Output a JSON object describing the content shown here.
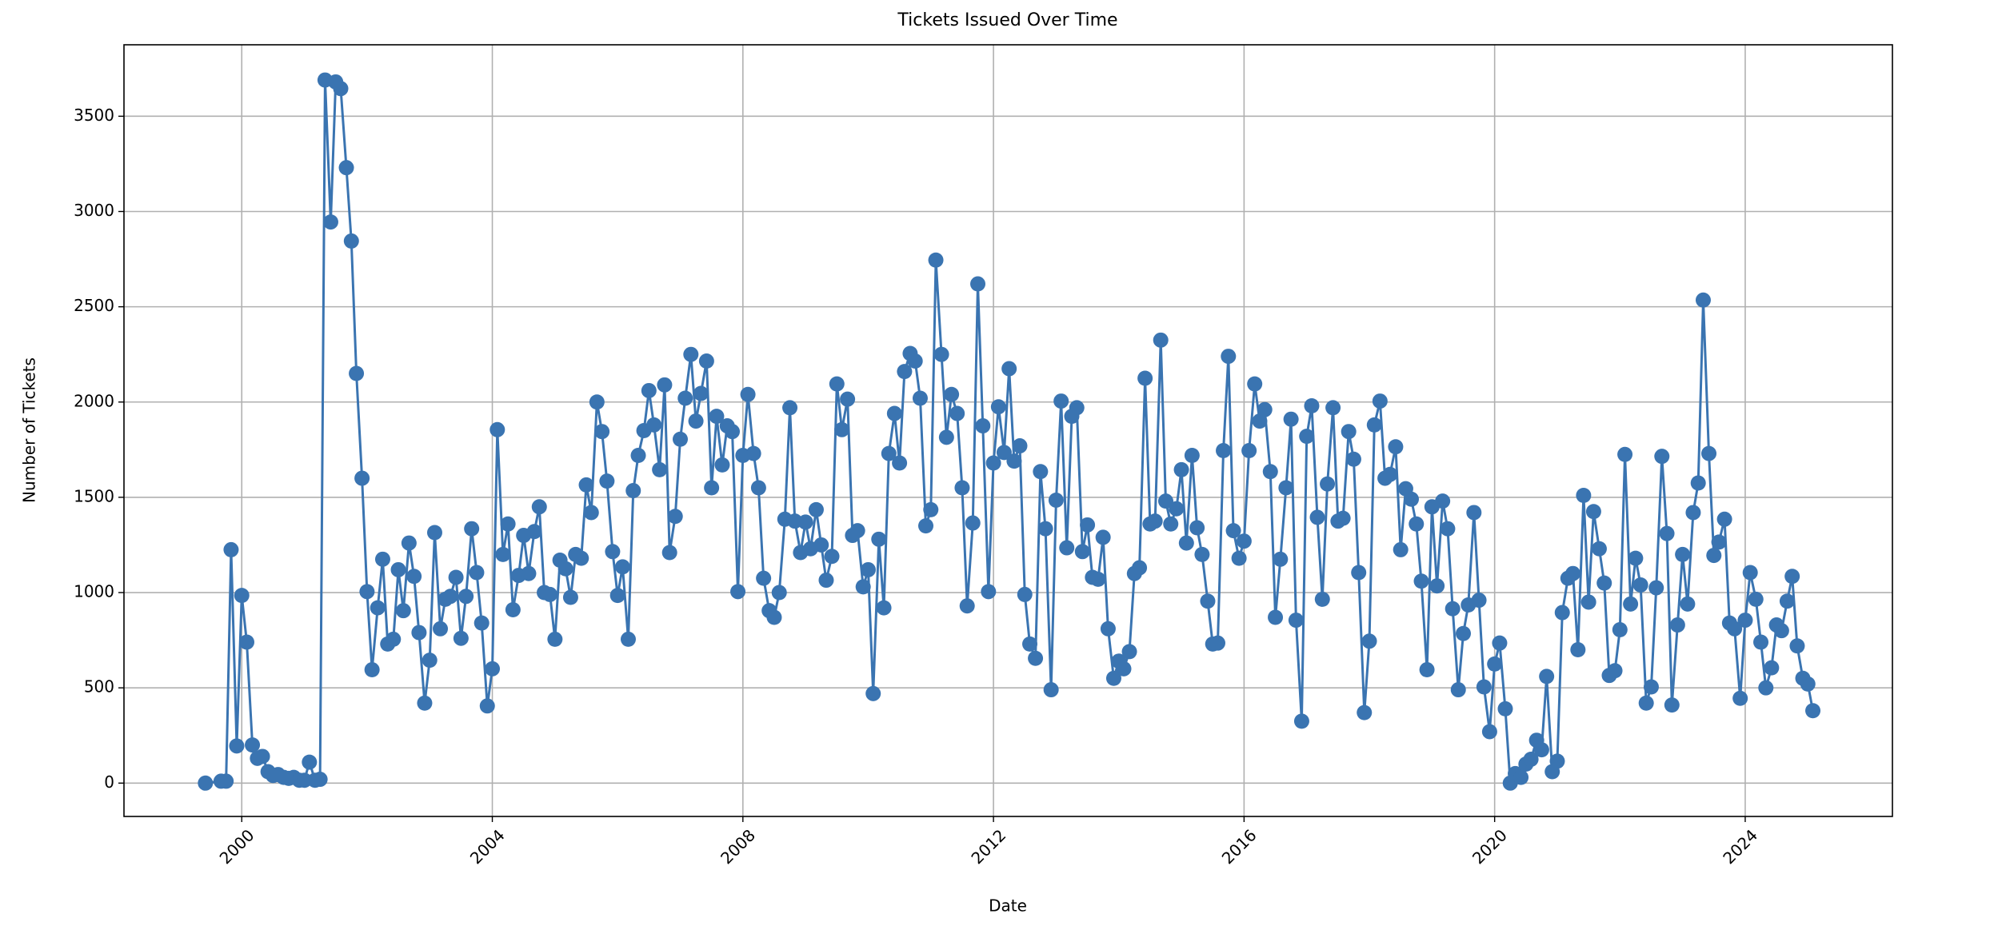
{
  "chart_data": {
    "type": "line",
    "title": "Tickets Issued Over Time",
    "xlabel": "Date",
    "ylabel": "Number of Tickets",
    "color": "#3a74b1",
    "grid": true,
    "marker": "o",
    "xlim": [
      1998.12,
      2026.35
    ],
    "xticks": [
      2000,
      2004,
      2008,
      2012,
      2016,
      2020,
      2024
    ],
    "ylim": [
      -175,
      3875
    ],
    "yticks": [
      0,
      500,
      1000,
      1500,
      2000,
      2500,
      3000,
      3500
    ],
    "x": [
      1999.42,
      1999.67,
      1999.75,
      1999.83,
      1999.92,
      2000,
      2000.08,
      2000.17,
      2000.25,
      2000.33,
      2000.42,
      2000.5,
      2000.58,
      2000.67,
      2000.75,
      2000.83,
      2000.92,
      2001,
      2001.08,
      2001.17,
      2001.25,
      2001.33,
      2001.42,
      2001.5,
      2001.58,
      2001.67,
      2001.75,
      2001.83,
      2001.92,
      2002,
      2002.08,
      2002.17,
      2002.25,
      2002.33,
      2002.42,
      2002.5,
      2002.58,
      2002.67,
      2002.75,
      2002.83,
      2002.92,
      2003,
      2003.08,
      2003.17,
      2003.25,
      2003.33,
      2003.42,
      2003.5,
      2003.58,
      2003.67,
      2003.75,
      2003.83,
      2003.92,
      2004,
      2004.08,
      2004.17,
      2004.25,
      2004.33,
      2004.42,
      2004.5,
      2004.58,
      2004.67,
      2004.75,
      2004.83,
      2004.92,
      2005,
      2005.08,
      2005.17,
      2005.25,
      2005.33,
      2005.42,
      2005.5,
      2005.58,
      2005.67,
      2005.75,
      2005.83,
      2005.92,
      2006,
      2006.08,
      2006.17,
      2006.25,
      2006.33,
      2006.42,
      2006.5,
      2006.58,
      2006.67,
      2006.75,
      2006.83,
      2006.92,
      2007,
      2007.08,
      2007.17,
      2007.25,
      2007.33,
      2007.42,
      2007.5,
      2007.58,
      2007.67,
      2007.75,
      2007.83,
      2007.92,
      2008,
      2008.08,
      2008.17,
      2008.25,
      2008.33,
      2008.42,
      2008.5,
      2008.58,
      2008.67,
      2008.75,
      2008.83,
      2008.92,
      2009,
      2009.08,
      2009.17,
      2009.25,
      2009.33,
      2009.42,
      2009.5,
      2009.58,
      2009.67,
      2009.75,
      2009.83,
      2009.92,
      2010,
      2010.08,
      2010.17,
      2010.25,
      2010.33,
      2010.42,
      2010.5,
      2010.58,
      2010.67,
      2010.75,
      2010.83,
      2010.92,
      2011,
      2011.08,
      2011.17,
      2011.25,
      2011.33,
      2011.42,
      2011.5,
      2011.58,
      2011.67,
      2011.75,
      2011.83,
      2011.92,
      2012,
      2012.08,
      2012.17,
      2012.25,
      2012.33,
      2012.42,
      2012.5,
      2012.58,
      2012.67,
      2012.75,
      2012.83,
      2012.92,
      2013,
      2013.08,
      2013.17,
      2013.25,
      2013.33,
      2013.42,
      2013.5,
      2013.58,
      2013.67,
      2013.75,
      2013.83,
      2013.92,
      2014,
      2014.08,
      2014.17,
      2014.25,
      2014.33,
      2014.42,
      2014.5,
      2014.58,
      2014.67,
      2014.75,
      2014.83,
      2014.92,
      2015,
      2015.08,
      2015.17,
      2015.25,
      2015.33,
      2015.42,
      2015.5,
      2015.58,
      2015.67,
      2015.75,
      2015.83,
      2015.92,
      2016,
      2016.08,
      2016.17,
      2016.25,
      2016.33,
      2016.42,
      2016.5,
      2016.58,
      2016.67,
      2016.75,
      2016.83,
      2016.92,
      2017,
      2017.08,
      2017.17,
      2017.25,
      2017.33,
      2017.42,
      2017.5,
      2017.58,
      2017.67,
      2017.75,
      2017.83,
      2017.92,
      2018,
      2018.08,
      2018.17,
      2018.25,
      2018.33,
      2018.42,
      2018.5,
      2018.58,
      2018.67,
      2018.75,
      2018.83,
      2018.92,
      2019,
      2019.08,
      2019.17,
      2019.25,
      2019.33,
      2019.42,
      2019.5,
      2019.58,
      2019.67,
      2019.75,
      2019.83,
      2019.92,
      2020,
      2020.08,
      2020.17,
      2020.25,
      2020.33,
      2020.42,
      2020.5,
      2020.58,
      2020.67,
      2020.75,
      2020.83,
      2020.92,
      2021,
      2021.08,
      2021.17,
      2021.25,
      2021.33,
      2021.42,
      2021.5,
      2021.58,
      2021.67,
      2021.75,
      2021.83,
      2021.92,
      2022,
      2022.08,
      2022.17,
      2022.25,
      2022.33,
      2022.42,
      2022.5,
      2022.58,
      2022.67,
      2022.75,
      2022.83,
      2022.92,
      2023,
      2023.08,
      2023.17,
      2023.25,
      2023.33,
      2023.42,
      2023.5,
      2023.58,
      2023.67,
      2023.75,
      2023.83,
      2023.92,
      2024,
      2024.08,
      2024.17,
      2024.25,
      2024.33,
      2024.42,
      2024.5,
      2024.58,
      2024.67,
      2024.75,
      2024.83,
      2024.92,
      2025,
      2025.08
    ],
    "values": [
      0,
      10,
      10,
      1225,
      195,
      985,
      740,
      200,
      130,
      140,
      60,
      40,
      45,
      30,
      25,
      30,
      15,
      15,
      110,
      15,
      20,
      3690,
      2945,
      3680,
      3645,
      3230,
      2845,
      2150,
      1600,
      1005,
      595,
      920,
      1175,
      730,
      755,
      1120,
      905,
      1260,
      1085,
      790,
      420,
      645,
      1315,
      810,
      965,
      980,
      1080,
      760,
      980,
      1335,
      1105,
      840,
      405,
      600,
      1855,
      1200,
      1360,
      910,
      1090,
      1300,
      1100,
      1320,
      1450,
      1000,
      990,
      755,
      1170,
      1125,
      975,
      1200,
      1180,
      1565,
      1420,
      2000,
      1845,
      1585,
      1215,
      985,
      1135,
      755,
      1535,
      1720,
      1850,
      2060,
      1880,
      1645,
      2090,
      1210,
      1400,
      1805,
      2020,
      2250,
      1900,
      2045,
      2215,
      1550,
      1925,
      1670,
      1875,
      1845,
      1005,
      1720,
      2040,
      1730,
      1550,
      1075,
      905,
      870,
      1000,
      1385,
      1970,
      1375,
      1210,
      1370,
      1230,
      1435,
      1250,
      1065,
      1190,
      2095,
      1855,
      2015,
      1300,
      1325,
      1030,
      1120,
      470,
      1280,
      920,
      1730,
      1940,
      1680,
      2160,
      2255,
      2215,
      2020,
      1350,
      1435,
      2745,
      2250,
      1815,
      2040,
      1940,
      1550,
      930,
      1365,
      2620,
      1875,
      1005,
      1680,
      1975,
      1735,
      2175,
      1690,
      1770,
      990,
      730,
      655,
      1635,
      1335,
      490,
      1485,
      2005,
      1235,
      1925,
      1970,
      1215,
      1355,
      1080,
      1070,
      1290,
      810,
      550,
      640,
      600,
      690,
      1100,
      1130,
      2125,
      1360,
      1375,
      2325,
      1480,
      1360,
      1440,
      1645,
      1260,
      1720,
      1340,
      1200,
      955,
      730,
      735,
      1745,
      2240,
      1325,
      1180,
      1270,
      1745,
      2095,
      1900,
      1960,
      1635,
      870,
      1175,
      1550,
      1910,
      855,
      325,
      1820,
      1980,
      1395,
      965,
      1570,
      1970,
      1375,
      1390,
      1845,
      1700,
      1105,
      370,
      745,
      1880,
      2005,
      1600,
      1620,
      1765,
      1225,
      1545,
      1490,
      1360,
      1060,
      595,
      1450,
      1035,
      1480,
      1335,
      915,
      490,
      785,
      935,
      1420,
      960,
      505,
      270,
      625,
      735,
      390,
      0,
      50,
      30,
      100,
      125,
      225,
      175,
      560,
      60,
      115,
      895,
      1075,
      1100,
      700,
      1510,
      950,
      1425,
      1230,
      1050,
      565,
      590,
      805,
      1725,
      940,
      1180,
      1040,
      420,
      505,
      1025,
      1715,
      1310,
      410,
      830,
      1200,
      940,
      1420,
      1575,
      2535,
      1730,
      1195,
      1265,
      1385,
      840,
      810,
      445,
      855,
      1105,
      965,
      740,
      500,
      605,
      830,
      800,
      955,
      1085,
      720,
      550,
      520,
      380
    ]
  }
}
